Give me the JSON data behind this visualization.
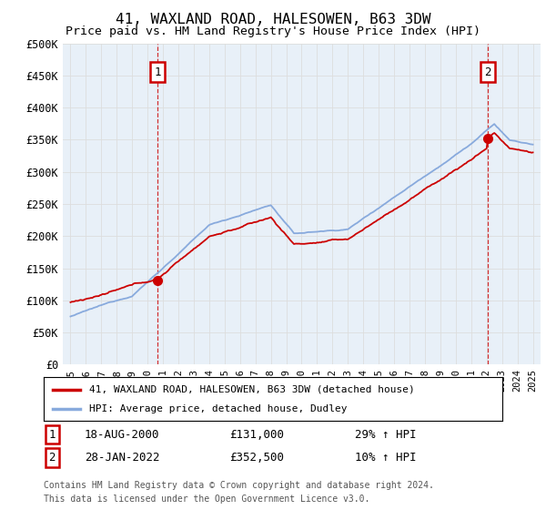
{
  "title": "41, WAXLAND ROAD, HALESOWEN, B63 3DW",
  "subtitle": "Price paid vs. HM Land Registry's House Price Index (HPI)",
  "ylim": [
    0,
    500000
  ],
  "yticks": [
    0,
    50000,
    100000,
    150000,
    200000,
    250000,
    300000,
    350000,
    400000,
    450000,
    500000
  ],
  "ytick_labels": [
    "£0",
    "£50K",
    "£100K",
    "£150K",
    "£200K",
    "£250K",
    "£300K",
    "£350K",
    "£400K",
    "£450K",
    "£500K"
  ],
  "xlim": [
    1994.5,
    2025.5
  ],
  "xticks": [
    1995,
    1996,
    1997,
    1998,
    1999,
    2000,
    2001,
    2002,
    2003,
    2004,
    2005,
    2006,
    2007,
    2008,
    2009,
    2010,
    2011,
    2012,
    2013,
    2014,
    2015,
    2016,
    2017,
    2018,
    2019,
    2020,
    2021,
    2022,
    2023,
    2024,
    2025
  ],
  "property_color": "#cc0000",
  "hpi_color": "#88aadd",
  "marker1_year": 2000.63,
  "marker1_value": 131000,
  "marker1_label": "1",
  "marker1_date": "18-AUG-2000",
  "marker1_price": "£131,000",
  "marker1_hpi": "29% ↑ HPI",
  "marker2_year": 2022.08,
  "marker2_value": 352500,
  "marker2_label": "2",
  "marker2_date": "28-JAN-2022",
  "marker2_price": "£352,500",
  "marker2_hpi": "10% ↑ HPI",
  "legend_property": "41, WAXLAND ROAD, HALESOWEN, B63 3DW (detached house)",
  "legend_hpi": "HPI: Average price, detached house, Dudley",
  "footnote1": "Contains HM Land Registry data © Crown copyright and database right 2024.",
  "footnote2": "This data is licensed under the Open Government Licence v3.0.",
  "background_color": "#ffffff",
  "grid_color": "#dddddd",
  "chart_bg_color": "#e8f0f8"
}
